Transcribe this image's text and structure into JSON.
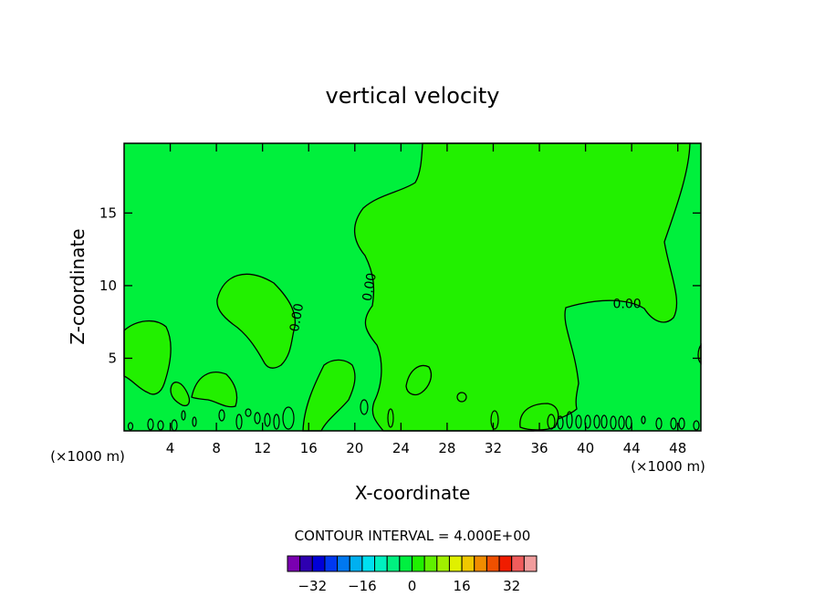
{
  "chart_data": {
    "type": "contour",
    "title": "vertical velocity",
    "xlabel": "X-coordinate",
    "ylabel": "Z-coordinate",
    "x_unit_left": "(×1000 m)",
    "x_unit_right": "(×1000 m)",
    "xlim": [
      0,
      50
    ],
    "ylim": [
      0,
      19.8
    ],
    "xticks": [
      4,
      8,
      12,
      16,
      20,
      24,
      28,
      32,
      36,
      40,
      44,
      48
    ],
    "yticks": [
      5,
      10,
      15
    ],
    "background_color": "#00F03C",
    "positive_region_color": "#22F000",
    "contour_labels": [
      {
        "text": "0.00",
        "x": 21.3,
        "z": 9.9,
        "angle": -80
      },
      {
        "text": "0.00",
        "x": 15.0,
        "z": 7.8,
        "angle": -80
      },
      {
        "text": "0.00",
        "x": 43.6,
        "z": 8.7,
        "angle": 0
      }
    ],
    "contour_interval_text": "CONTOUR INTERVAL = 4.000E+00",
    "colorbar": {
      "colors": [
        "#7A00B0",
        "#2E00B0",
        "#0000D8",
        "#0038F0",
        "#0078F0",
        "#00B0F0",
        "#00E0F0",
        "#00F0C0",
        "#00F080",
        "#00F040",
        "#20F000",
        "#60F000",
        "#A0F000",
        "#E0F000",
        "#F0C800",
        "#F08C00",
        "#F05000",
        "#F01C00",
        "#F05C5C",
        "#F09C9C"
      ],
      "tick_values": [
        -32,
        -16,
        0,
        16,
        32
      ],
      "tick_labels": [
        "−32",
        "−16",
        "0",
        "16",
        "32"
      ],
      "min": -40,
      "max": 40
    }
  }
}
